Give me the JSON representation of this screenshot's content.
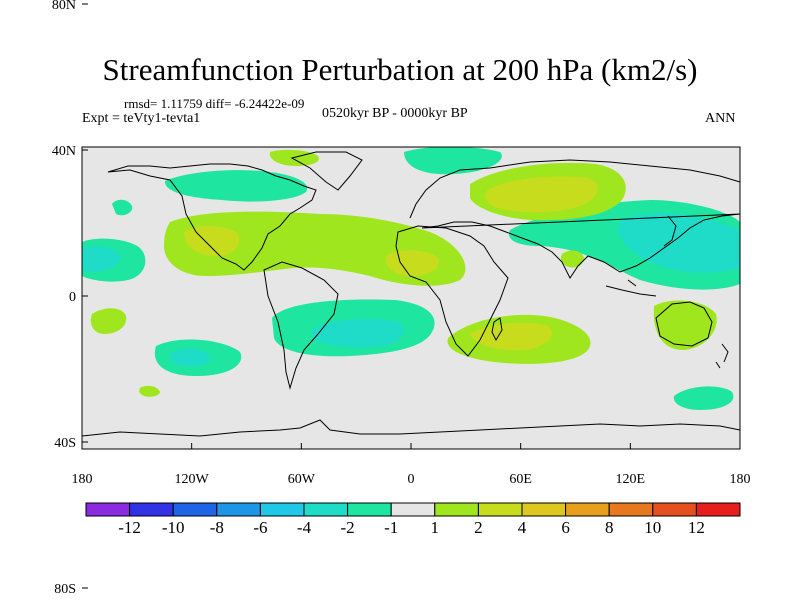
{
  "title": "Streamfunction Perturbation at 200 hPa (km2/s)",
  "stats_line": "rmsd= 1.11759 diff= -6.24422e-09",
  "experiment": "Expt = teVty1-tevta1",
  "period": "0520kyr BP - 0000kyr BP",
  "season": "ANN",
  "lat_ticks": [
    {
      "lat": 80,
      "label": "80N"
    },
    {
      "lat": 40,
      "label": "40N"
    },
    {
      "lat": 0,
      "label": "0"
    },
    {
      "lat": -40,
      "label": "40S"
    },
    {
      "lat": -80,
      "label": "80S"
    }
  ],
  "lon_ticks": [
    {
      "lon": -180,
      "label": "180"
    },
    {
      "lon": -120,
      "label": "120W"
    },
    {
      "lon": -60,
      "label": "60W"
    },
    {
      "lon": 0,
      "label": "0"
    },
    {
      "lon": 60,
      "label": "60E"
    },
    {
      "lon": 120,
      "label": "120E"
    },
    {
      "lon": 180,
      "label": "180"
    }
  ],
  "colorbar": {
    "colors": [
      "#8a2be2",
      "#3232e6",
      "#1e64e6",
      "#1e96e6",
      "#1ec8e6",
      "#1edcc8",
      "#1ee6a0",
      "#e6e6e6",
      "#a0e61e",
      "#c8dc1e",
      "#dcc81e",
      "#e6a01e",
      "#e6781e",
      "#e6501e",
      "#e61e1e"
    ],
    "labels": [
      "-12",
      "-10",
      "-8",
      "-6",
      "-4",
      "-2",
      "-1",
      "1",
      "2",
      "4",
      "6",
      "8",
      "10",
      "12"
    ]
  },
  "colors": {
    "background": "#e6e6e6",
    "neg_1_2": "#1ee6a0",
    "neg_2_4": "#1edcc8",
    "pos_1_2": "#a0e61e",
    "pos_2_4": "#c8dc1e"
  }
}
